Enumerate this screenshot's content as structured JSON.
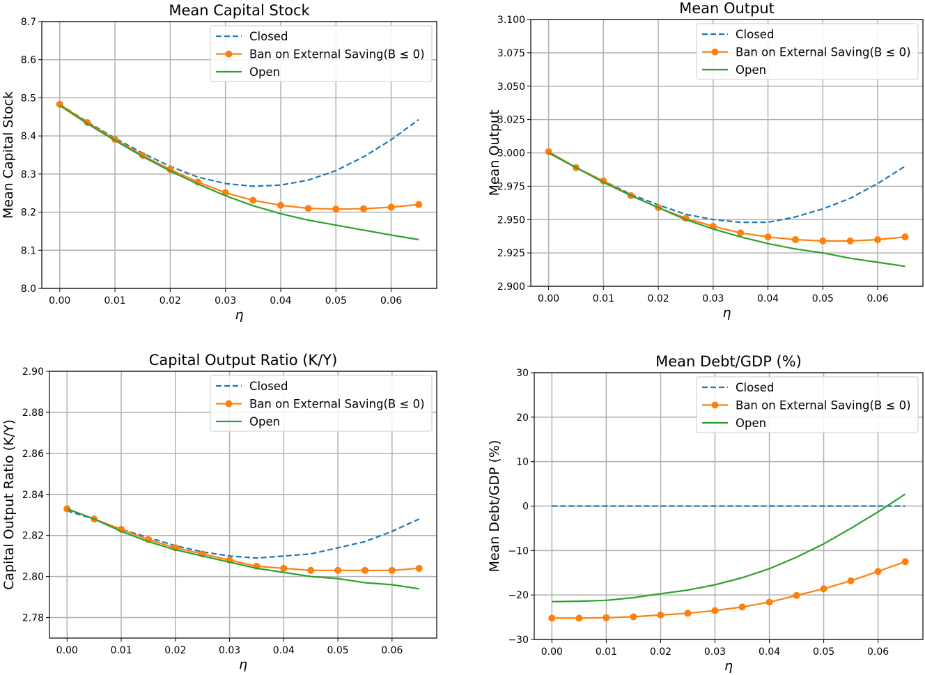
{
  "chart_data": [
    {
      "type": "line",
      "title": "Mean  Capital Stock",
      "xlabel": "η",
      "ylabel": "Mean  Capital Stock",
      "xlim": [
        -0.00325,
        0.06825
      ],
      "ylim": [
        8.0,
        8.7
      ],
      "xticks": [
        0.0,
        0.01,
        0.02,
        0.03,
        0.04,
        0.05,
        0.06
      ],
      "xtick_labels": [
        "0.00",
        "0.01",
        "0.02",
        "0.03",
        "0.04",
        "0.05",
        "0.06"
      ],
      "yticks": [
        8.0,
        8.1,
        8.2,
        8.3,
        8.4,
        8.5,
        8.6,
        8.7
      ],
      "ytick_labels": [
        "8.0",
        "8.1",
        "8.2",
        "8.3",
        "8.4",
        "8.5",
        "8.6",
        "8.7"
      ],
      "grid": true,
      "legend_position": "top-right",
      "x": [
        0.0,
        0.005,
        0.01,
        0.015,
        0.02,
        0.025,
        0.03,
        0.035,
        0.04,
        0.045,
        0.05,
        0.055,
        0.06,
        0.065
      ],
      "series": [
        {
          "name": "Closed",
          "style": "dashed",
          "color": "#1f77b4",
          "marker": false,
          "values": [
            8.483,
            8.437,
            8.394,
            8.355,
            8.32,
            8.292,
            8.275,
            8.268,
            8.271,
            8.284,
            8.309,
            8.345,
            8.39,
            8.443
          ]
        },
        {
          "name": "Ban on External Saving(B ≤ 0)",
          "style": "solid",
          "color": "#ff7f0e",
          "marker": true,
          "values": [
            8.483,
            8.435,
            8.391,
            8.349,
            8.312,
            8.279,
            8.251,
            8.231,
            8.218,
            8.21,
            8.208,
            8.209,
            8.213,
            8.22
          ]
        },
        {
          "name": "Open",
          "style": "solid",
          "color": "#2ca02c",
          "marker": false,
          "values": [
            8.48,
            8.432,
            8.388,
            8.346,
            8.308,
            8.274,
            8.243,
            8.217,
            8.196,
            8.179,
            8.166,
            8.153,
            8.14,
            8.128
          ]
        }
      ]
    },
    {
      "type": "line",
      "title": "Mean  Output",
      "xlabel": "η",
      "ylabel": "Mean  Output",
      "xlim": [
        -0.00325,
        0.06825
      ],
      "ylim": [
        2.9,
        3.1
      ],
      "xticks": [
        0.0,
        0.01,
        0.02,
        0.03,
        0.04,
        0.05,
        0.06
      ],
      "xtick_labels": [
        "0.00",
        "0.01",
        "0.02",
        "0.03",
        "0.04",
        "0.05",
        "0.06"
      ],
      "yticks": [
        2.9,
        2.925,
        2.95,
        2.975,
        3.0,
        3.025,
        3.05,
        3.075,
        3.1
      ],
      "ytick_labels": [
        "2.900",
        "2.925",
        "2.950",
        "2.975",
        "3.000",
        "3.025",
        "3.050",
        "3.075",
        "3.100"
      ],
      "grid": true,
      "legend_position": "top-right",
      "x": [
        0.0,
        0.005,
        0.01,
        0.015,
        0.02,
        0.025,
        0.03,
        0.035,
        0.04,
        0.045,
        0.05,
        0.055,
        0.06,
        0.065
      ],
      "series": [
        {
          "name": "Closed",
          "style": "dashed",
          "color": "#1f77b4",
          "marker": false,
          "values": [
            3.0,
            2.989,
            2.979,
            2.969,
            2.961,
            2.954,
            2.95,
            2.948,
            2.948,
            2.952,
            2.958,
            2.966,
            2.977,
            2.99
          ]
        },
        {
          "name": "Ban on External Saving(B ≤ 0)",
          "style": "solid",
          "color": "#ff7f0e",
          "marker": true,
          "values": [
            3.001,
            2.989,
            2.979,
            2.968,
            2.959,
            2.951,
            2.945,
            2.94,
            2.937,
            2.935,
            2.934,
            2.934,
            2.935,
            2.937
          ]
        },
        {
          "name": "Open",
          "style": "solid",
          "color": "#2ca02c",
          "marker": false,
          "values": [
            3.0,
            2.989,
            2.978,
            2.968,
            2.959,
            2.95,
            2.943,
            2.937,
            2.932,
            2.928,
            2.925,
            2.921,
            2.918,
            2.915
          ]
        }
      ]
    },
    {
      "type": "line",
      "title": "Capital Output Ratio (K/Y)",
      "xlabel": "η",
      "ylabel": "Capital Output Ratio (K/Y)",
      "xlim": [
        -0.00325,
        0.06825
      ],
      "ylim": [
        2.77,
        2.9
      ],
      "xticks": [
        0.0,
        0.01,
        0.02,
        0.03,
        0.04,
        0.05,
        0.06
      ],
      "xtick_labels": [
        "0.00",
        "0.01",
        "0.02",
        "0.03",
        "0.04",
        "0.05",
        "0.06"
      ],
      "yticks": [
        2.78,
        2.8,
        2.82,
        2.84,
        2.86,
        2.88,
        2.9
      ],
      "ytick_labels": [
        "2.78",
        "2.80",
        "2.82",
        "2.84",
        "2.86",
        "2.88",
        "2.90"
      ],
      "grid": true,
      "legend_position": "top-right",
      "x": [
        0.0,
        0.005,
        0.01,
        0.015,
        0.02,
        0.025,
        0.03,
        0.035,
        0.04,
        0.045,
        0.05,
        0.055,
        0.06,
        0.065
      ],
      "series": [
        {
          "name": "Closed",
          "style": "dashed",
          "color": "#1f77b4",
          "marker": false,
          "values": [
            2.832,
            2.828,
            2.823,
            2.819,
            2.815,
            2.812,
            2.81,
            2.809,
            2.81,
            2.811,
            2.814,
            2.817,
            2.822,
            2.828
          ]
        },
        {
          "name": "Ban on External Saving(B ≤ 0)",
          "style": "solid",
          "color": "#ff7f0e",
          "marker": true,
          "values": [
            2.833,
            2.828,
            2.823,
            2.818,
            2.814,
            2.811,
            2.808,
            2.805,
            2.804,
            2.803,
            2.803,
            2.803,
            2.803,
            2.804
          ]
        },
        {
          "name": "Open",
          "style": "solid",
          "color": "#2ca02c",
          "marker": false,
          "values": [
            2.833,
            2.828,
            2.822,
            2.817,
            2.813,
            2.81,
            2.807,
            2.804,
            2.802,
            2.8,
            2.799,
            2.797,
            2.796,
            2.794
          ]
        }
      ]
    },
    {
      "type": "line",
      "title": "Mean Debt/GDP (%)",
      "xlabel": "η",
      "ylabel": "Mean Debt/GDP (%)",
      "xlim": [
        -0.00325,
        0.06825
      ],
      "ylim": [
        -30,
        30
      ],
      "xticks": [
        0.0,
        0.01,
        0.02,
        0.03,
        0.04,
        0.05,
        0.06
      ],
      "xtick_labels": [
        "0.00",
        "0.01",
        "0.02",
        "0.03",
        "0.04",
        "0.05",
        "0.06"
      ],
      "yticks": [
        -30,
        -20,
        -10,
        0,
        10,
        20,
        30
      ],
      "ytick_labels": [
        "−30",
        "−20",
        "−10",
        "0",
        "10",
        "20",
        "30"
      ],
      "grid": true,
      "legend_position": "top-right",
      "x": [
        0.0,
        0.005,
        0.01,
        0.015,
        0.02,
        0.025,
        0.03,
        0.035,
        0.04,
        0.045,
        0.05,
        0.055,
        0.06,
        0.065
      ],
      "series": [
        {
          "name": "Closed",
          "style": "dashed",
          "color": "#1f77b4",
          "marker": false,
          "values": [
            0,
            0,
            0,
            0,
            0,
            0,
            0,
            0,
            0,
            0,
            0,
            0,
            0,
            0
          ]
        },
        {
          "name": "Ban on External Saving(B ≤ 0)",
          "style": "solid",
          "color": "#ff7f0e",
          "marker": true,
          "values": [
            -25.2,
            -25.2,
            -25.1,
            -24.9,
            -24.5,
            -24.1,
            -23.5,
            -22.7,
            -21.6,
            -20.1,
            -18.6,
            -16.8,
            -14.7,
            -12.5
          ]
        },
        {
          "name": "Open",
          "style": "solid",
          "color": "#2ca02c",
          "marker": false,
          "values": [
            -21.5,
            -21.4,
            -21.2,
            -20.6,
            -19.7,
            -18.9,
            -17.7,
            -16.1,
            -14.1,
            -11.5,
            -8.5,
            -5.0,
            -1.3,
            2.7
          ]
        }
      ]
    }
  ]
}
